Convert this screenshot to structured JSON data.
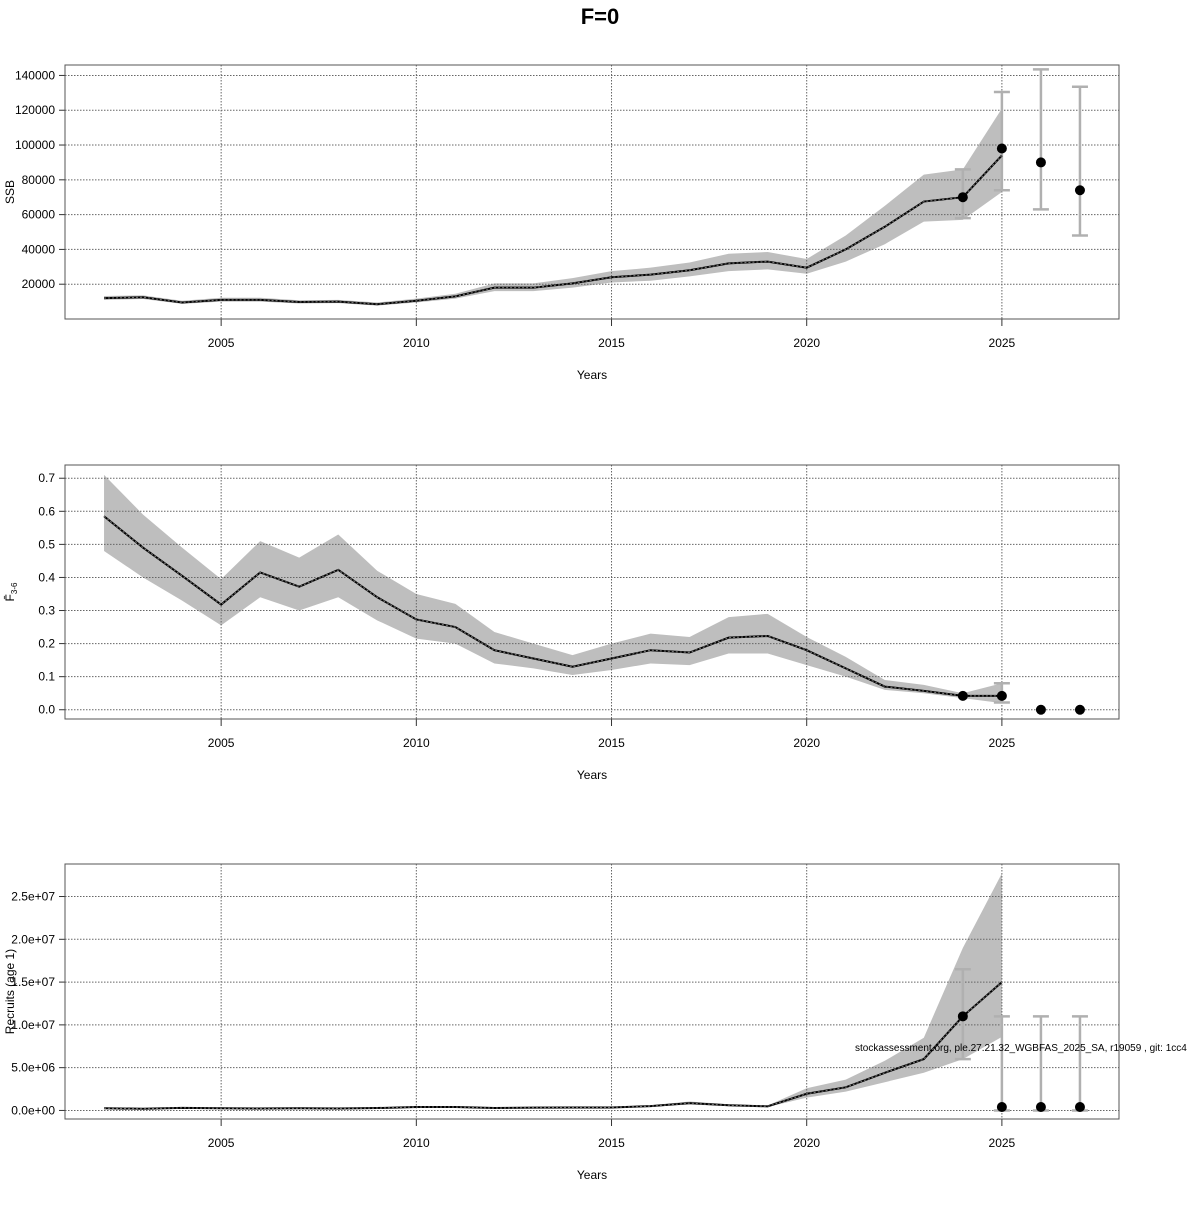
{
  "title": "F=0",
  "footnote": "stockassessment.org, ple.27.21.32_WGBFAS_2025_SA, r19059 , git: 1cc4",
  "colors": {
    "band": "#bebebe",
    "line": "#000000",
    "errorbar": "#b0b0b0",
    "grid": "#666666"
  },
  "chart_data": [
    {
      "type": "line",
      "ylabel": "SSB",
      "xlabel": "Years",
      "xlim": [
        2001,
        2028
      ],
      "ylim": [
        0,
        146000
      ],
      "grid": true,
      "xticks": [
        2005,
        2010,
        2015,
        2020,
        2025
      ],
      "yticks": [
        20000,
        40000,
        60000,
        80000,
        100000,
        120000,
        140000
      ],
      "ytick_labels": [
        "20000",
        "40000",
        "60000",
        "80000",
        "100000",
        "120000",
        "140000"
      ],
      "x": [
        2002,
        2003,
        2004,
        2005,
        2006,
        2007,
        2008,
        2009,
        2010,
        2011,
        2012,
        2013,
        2014,
        2015,
        2016,
        2017,
        2018,
        2019,
        2020,
        2021,
        2022,
        2023,
        2024,
        2025
      ],
      "estimate": [
        12000,
        12500,
        9500,
        11000,
        11000,
        9800,
        10000,
        8500,
        10500,
        13000,
        18000,
        18000,
        20500,
        24000,
        25500,
        28000,
        32000,
        33000,
        29500,
        40000,
        53000,
        67500,
        70000,
        94000
      ],
      "lower": [
        11000,
        11500,
        8700,
        10000,
        10000,
        8900,
        9100,
        7700,
        9500,
        11700,
        16000,
        16000,
        18000,
        21000,
        22000,
        24500,
        27500,
        28500,
        26000,
        33000,
        43000,
        56000,
        57000,
        73000
      ],
      "upper": [
        13200,
        13600,
        10500,
        12200,
        12200,
        10800,
        11000,
        9500,
        11700,
        14500,
        20500,
        20500,
        23500,
        27500,
        29500,
        32500,
        37500,
        38500,
        34500,
        48000,
        65000,
        83000,
        86000,
        121000
      ],
      "forecast": [
        {
          "year": 2024,
          "value": 70000,
          "low": 58000,
          "high": 86000
        },
        {
          "year": 2025,
          "value": 98000,
          "low": 74000,
          "high": 130500
        },
        {
          "year": 2026,
          "value": 90000,
          "low": 63000,
          "high": 143500
        },
        {
          "year": 2027,
          "value": 74000,
          "low": 48000,
          "high": 133500
        }
      ]
    },
    {
      "type": "line",
      "ylabel": "F̄",
      "ylabel_sub": "3-6",
      "xlabel": "Years",
      "xlim": [
        2001,
        2028
      ],
      "ylim": [
        -0.028,
        0.74
      ],
      "grid": true,
      "xticks": [
        2005,
        2010,
        2015,
        2020,
        2025
      ],
      "yticks": [
        0,
        0.1,
        0.2,
        0.3,
        0.4,
        0.5,
        0.6,
        0.7
      ],
      "ytick_labels": [
        "0.0",
        "0.1",
        "0.2",
        "0.3",
        "0.4",
        "0.5",
        "0.6",
        "0.7"
      ],
      "x": [
        2002,
        2003,
        2004,
        2005,
        2006,
        2007,
        2008,
        2009,
        2010,
        2011,
        2012,
        2013,
        2014,
        2015,
        2016,
        2017,
        2018,
        2019,
        2020,
        2021,
        2022,
        2023,
        2024,
        2025
      ],
      "estimate": [
        0.585,
        0.49,
        0.405,
        0.318,
        0.415,
        0.372,
        0.423,
        0.34,
        0.273,
        0.25,
        0.18,
        0.155,
        0.13,
        0.155,
        0.18,
        0.173,
        0.218,
        0.223,
        0.18,
        0.125,
        0.07,
        0.057,
        0.042,
        0.042
      ],
      "lower": [
        0.48,
        0.4,
        0.33,
        0.255,
        0.34,
        0.3,
        0.34,
        0.27,
        0.215,
        0.2,
        0.14,
        0.125,
        0.105,
        0.12,
        0.14,
        0.135,
        0.17,
        0.17,
        0.135,
        0.1,
        0.06,
        0.05,
        0.035,
        0.02
      ],
      "upper": [
        0.71,
        0.59,
        0.49,
        0.395,
        0.51,
        0.46,
        0.53,
        0.42,
        0.35,
        0.32,
        0.235,
        0.2,
        0.165,
        0.2,
        0.23,
        0.22,
        0.28,
        0.29,
        0.22,
        0.16,
        0.09,
        0.075,
        0.05,
        0.08
      ],
      "forecast": [
        {
          "year": 2024,
          "value": 0.042,
          "low": 0.042,
          "high": 0.042
        },
        {
          "year": 2025,
          "value": 0.042,
          "low": 0.022,
          "high": 0.08
        },
        {
          "year": 2026,
          "value": 0,
          "low": 0,
          "high": 0
        },
        {
          "year": 2027,
          "value": 0,
          "low": 0,
          "high": 0
        }
      ]
    },
    {
      "type": "line",
      "ylabel": "Recruits (age 1)",
      "xlabel": "Years",
      "xlim": [
        2001,
        2028
      ],
      "ylim": [
        -1000000,
        28800000
      ],
      "grid": true,
      "xticks": [
        2005,
        2010,
        2015,
        2020,
        2025
      ],
      "yticks": [
        0,
        5000000,
        10000000,
        15000000,
        20000000,
        25000000
      ],
      "ytick_labels": [
        "0.0e+00",
        "5.0e+06",
        "1.0e+07",
        "1.5e+07",
        "2.0e+07",
        "2.5e+07"
      ],
      "x": [
        2002,
        2003,
        2004,
        2005,
        2006,
        2007,
        2008,
        2009,
        2010,
        2011,
        2012,
        2013,
        2014,
        2015,
        2016,
        2017,
        2018,
        2019,
        2020,
        2021,
        2022,
        2023,
        2024,
        2025
      ],
      "estimate": [
        250000,
        200000,
        300000,
        250000,
        220000,
        250000,
        230000,
        280000,
        400000,
        400000,
        280000,
        330000,
        350000,
        350000,
        500000,
        850000,
        600000,
        480000,
        1950000,
        2700000,
        4400000,
        6000000,
        11000000,
        15000000
      ],
      "lower": [
        200000,
        150000,
        240000,
        200000,
        180000,
        200000,
        180000,
        220000,
        320000,
        320000,
        220000,
        270000,
        280000,
        280000,
        420000,
        700000,
        500000,
        400000,
        1500000,
        2200000,
        3300000,
        4400000,
        6000000,
        8600000
      ],
      "upper": [
        310000,
        260000,
        380000,
        310000,
        270000,
        310000,
        290000,
        350000,
        500000,
        500000,
        350000,
        410000,
        440000,
        440000,
        600000,
        1050000,
        730000,
        580000,
        2600000,
        3600000,
        5800000,
        8500000,
        19000000,
        27700000
      ],
      "forecast": [
        {
          "year": 2024,
          "value": 11000000,
          "low": 6000000,
          "high": 16500000
        },
        {
          "year": 2025,
          "value": 400000,
          "low": 0,
          "high": 11000000
        },
        {
          "year": 2026,
          "value": 400000,
          "low": 0,
          "high": 11000000
        },
        {
          "year": 2027,
          "value": 400000,
          "low": 0,
          "high": 11000000
        }
      ]
    }
  ]
}
